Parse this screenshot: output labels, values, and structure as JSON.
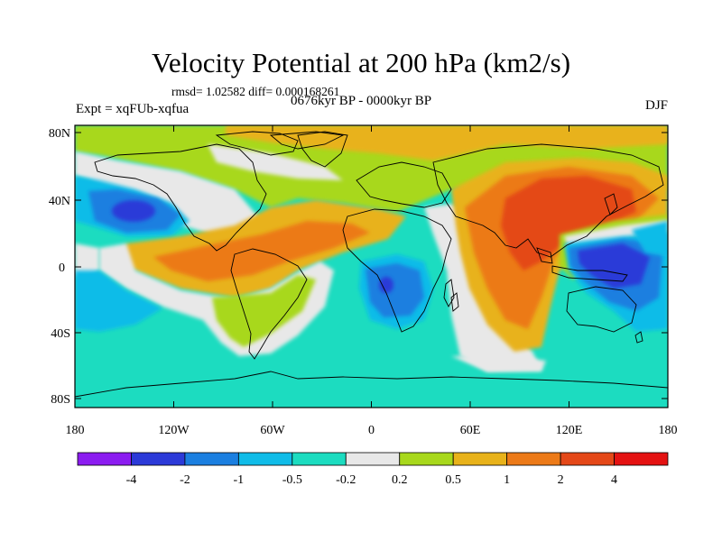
{
  "header": {
    "title": "Velocity Potential at 200 hPa (km2/s)",
    "stats": "rmsd= 1.02582 diff= 0.000168261",
    "experiment": "Expt = xqFUb-xqfua",
    "period": "0676kyr BP - 0000kyr BP",
    "season": "DJF"
  },
  "axes": {
    "lon_ticks": [
      "180",
      "120W",
      "60W",
      "0",
      "60E",
      "120E",
      "180"
    ],
    "lat_ticks": [
      "80N",
      "40N",
      "0",
      "40S",
      "80S"
    ]
  },
  "colorbar": {
    "colors": [
      "#8b1cf0",
      "#2c3ad8",
      "#1b7fe0",
      "#10bce8",
      "#1cdcc0",
      "#e8e8e8",
      "#a8d81c",
      "#e8b21a",
      "#ec7a18",
      "#e44818",
      "#e41212"
    ],
    "labels": [
      "-4",
      "-2",
      "-1",
      "-0.5",
      "-0.2",
      "0.2",
      "0.5",
      "1",
      "2",
      "4"
    ]
  }
}
